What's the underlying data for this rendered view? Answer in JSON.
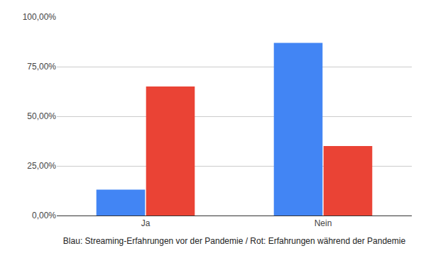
{
  "chart_data": {
    "type": "bar",
    "x_label": "Blau: Streaming-Erfahrungen vor der Pandemie / Rot: Erfahrungen während der Pandemie",
    "categories": [
      "Ja",
      "Nein"
    ],
    "series": [
      {
        "color": "#4285f4",
        "values": [
          13,
          87
        ]
      },
      {
        "color": "#ea4335",
        "values": [
          65,
          35
        ]
      }
    ],
    "ylim": [
      0,
      100
    ],
    "yticks": [
      {
        "value": 0,
        "label": "0,00%"
      },
      {
        "value": 25,
        "label": "25,00%"
      },
      {
        "value": 50,
        "label": "50,00%"
      },
      {
        "value": 75,
        "label": "75,00%"
      },
      {
        "value": 100,
        "label": "100,00%"
      }
    ],
    "grid": true
  }
}
